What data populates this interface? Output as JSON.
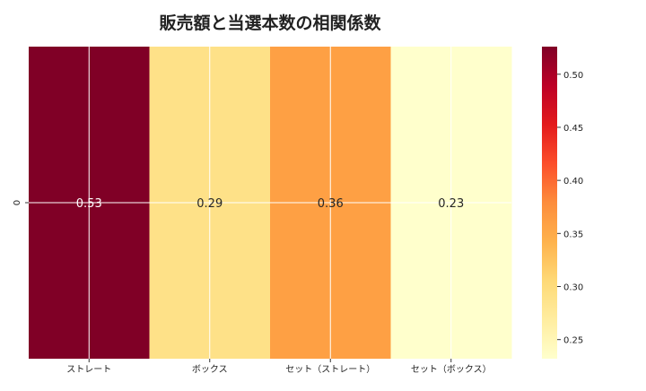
{
  "chart_data": {
    "type": "heatmap",
    "title": "販売額と当選本数の相関係数",
    "rows": [
      "0"
    ],
    "categories": [
      "ストレート",
      "ボックス",
      "セット（ストレート）",
      "セット（ボックス）"
    ],
    "values": [
      [
        0.53,
        0.29,
        0.36,
        0.23
      ]
    ],
    "value_labels": [
      "0.53",
      "0.29",
      "0.36",
      "0.23"
    ],
    "colormap": "YlOrRd",
    "vmin": 0.232,
    "vmax": 0.526,
    "colorbar_ticks": [
      "0.25",
      "0.30",
      "0.35",
      "0.40",
      "0.45",
      "0.50"
    ],
    "colorbar_tick_values": [
      0.25,
      0.3,
      0.35,
      0.4,
      0.45,
      0.5
    ],
    "grid": true
  }
}
